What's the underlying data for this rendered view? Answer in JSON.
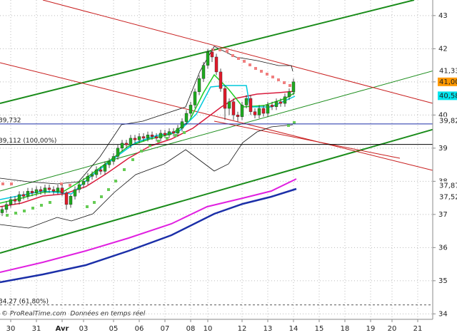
{
  "chart_data": {
    "type": "candlestick",
    "categories": [
      null,
      null,
      "30",
      null,
      null,
      null,
      null,
      null,
      "31",
      null,
      null,
      null,
      null,
      null,
      "Avr",
      null,
      null,
      null,
      null,
      "03",
      null,
      null,
      null,
      null,
      null,
      null,
      "05",
      null,
      null,
      null,
      null,
      null,
      "06",
      null,
      null,
      null,
      null,
      null,
      "07",
      null,
      null,
      null,
      null,
      null,
      "08",
      null,
      null,
      null,
      "10",
      null,
      null,
      null,
      null,
      null,
      null,
      null,
      "12",
      null,
      null,
      null,
      null,
      null,
      "13",
      null,
      null,
      null,
      null,
      null,
      "14",
      null,
      null,
      null,
      null,
      null,
      "15",
      null,
      null,
      null,
      null,
      null,
      "18",
      null,
      null,
      null,
      null,
      null,
      "19",
      null,
      null,
      null,
      null,
      "20",
      null,
      null,
      null,
      null,
      null,
      "21",
      null,
      null,
      null
    ],
    "open": [
      37.05,
      37.15,
      37.3,
      37.45,
      37.4,
      37.6,
      37.55,
      37.7,
      37.65,
      37.75,
      37.7,
      37.8,
      37.75,
      37.7,
      37.8,
      37.65,
      37.3,
      37.55,
      37.75,
      37.9,
      38.0,
      38.15,
      38.2,
      38.35,
      38.3,
      38.5,
      38.6,
      38.75,
      39.0,
      39.15,
      39.1,
      39.3,
      39.25,
      39.35,
      39.3,
      39.4,
      39.35,
      39.3,
      39.45,
      39.4,
      39.5,
      39.45,
      39.6,
      39.8,
      40.05,
      40.3,
      40.7,
      41.1,
      41.5,
      41.9,
      41.75,
      41.3,
      40.8,
      40.2,
      40.4,
      40.0,
      39.95,
      40.3,
      40.5,
      40.1,
      40.0,
      40.2,
      40.05,
      40.3,
      40.25,
      40.4,
      40.35,
      40.55,
      40.7,
      null,
      null,
      null,
      null,
      null,
      null,
      null,
      null,
      null,
      null,
      null,
      null,
      null,
      null,
      null,
      null,
      null,
      null,
      null,
      null,
      null,
      null,
      null,
      null,
      null,
      null,
      null,
      null,
      null,
      null,
      null,
      null
    ],
    "high": [
      37.25,
      37.4,
      37.55,
      37.55,
      37.7,
      37.7,
      37.8,
      37.8,
      37.85,
      37.85,
      37.9,
      37.9,
      37.85,
      37.9,
      37.9,
      37.7,
      37.6,
      37.85,
      38.0,
      38.1,
      38.25,
      38.3,
      38.45,
      38.45,
      38.6,
      38.7,
      38.85,
      39.1,
      39.25,
      39.25,
      39.4,
      39.4,
      39.45,
      39.45,
      39.5,
      39.5,
      39.45,
      39.55,
      39.55,
      39.6,
      39.6,
      39.7,
      39.9,
      40.15,
      40.4,
      40.8,
      41.2,
      41.6,
      42.0,
      42.0,
      41.85,
      41.4,
      40.9,
      40.5,
      40.5,
      40.1,
      40.4,
      40.6,
      40.6,
      40.2,
      40.3,
      40.3,
      40.4,
      40.4,
      40.5,
      40.5,
      40.65,
      40.8,
      41.1,
      null,
      null,
      null,
      null,
      null,
      null,
      null,
      null,
      null,
      null,
      null,
      null,
      null,
      null,
      null,
      null,
      null,
      null,
      null,
      null,
      null,
      null,
      null,
      null,
      null,
      null,
      null,
      null,
      null,
      null,
      null,
      null
    ],
    "low": [
      36.95,
      37.05,
      37.2,
      37.3,
      37.3,
      37.45,
      37.45,
      37.55,
      37.55,
      37.6,
      37.6,
      37.65,
      37.6,
      37.6,
      37.55,
      37.15,
      37.2,
      37.45,
      37.65,
      37.8,
      37.9,
      38.05,
      38.1,
      38.2,
      38.2,
      38.4,
      38.5,
      38.65,
      38.9,
      39.0,
      39.0,
      39.15,
      39.15,
      39.2,
      39.2,
      39.25,
      39.2,
      39.2,
      39.3,
      39.3,
      39.35,
      39.35,
      39.5,
      39.7,
      39.95,
      40.2,
      40.6,
      41.0,
      41.4,
      41.6,
      41.2,
      40.7,
      39.85,
      40.0,
      39.85,
      39.8,
      39.85,
      40.2,
      40.0,
      39.9,
      39.9,
      39.95,
      39.95,
      40.15,
      40.15,
      40.25,
      40.25,
      40.45,
      40.6,
      null,
      null,
      null,
      null,
      null,
      null,
      null,
      null,
      null,
      null,
      null,
      null,
      null,
      null,
      null,
      null,
      null,
      null,
      null,
      null,
      null,
      null,
      null,
      null,
      null,
      null,
      null,
      null,
      null,
      null,
      null,
      null
    ],
    "close": [
      37.15,
      37.3,
      37.45,
      37.4,
      37.6,
      37.55,
      37.7,
      37.65,
      37.75,
      37.7,
      37.8,
      37.75,
      37.7,
      37.8,
      37.65,
      37.3,
      37.55,
      37.75,
      37.9,
      38.0,
      38.15,
      38.2,
      38.35,
      38.3,
      38.5,
      38.6,
      38.75,
      39.0,
      39.15,
      39.1,
      39.3,
      39.25,
      39.35,
      39.3,
      39.4,
      39.35,
      39.3,
      39.45,
      39.4,
      39.5,
      39.45,
      39.6,
      39.8,
      40.05,
      40.3,
      40.7,
      41.1,
      41.5,
      41.9,
      41.75,
      41.3,
      40.8,
      40.2,
      40.4,
      40.0,
      39.95,
      40.3,
      40.5,
      40.1,
      40.0,
      40.2,
      40.05,
      40.3,
      40.25,
      40.4,
      40.35,
      40.55,
      40.7,
      41.0,
      null,
      null,
      null,
      null,
      null,
      null,
      null,
      null,
      null,
      null,
      null,
      null,
      null,
      null,
      null,
      null,
      null,
      null,
      null,
      null,
      null,
      null,
      null,
      null,
      null,
      null,
      null,
      null,
      null,
      null,
      null,
      null
    ],
    "up_color": "#1faa1f",
    "down_color": "#e01b2b",
    "ylim": [
      33.9,
      43.47
    ],
    "yticks": [
      34,
      35,
      36,
      37,
      38,
      39,
      40,
      41,
      42,
      43
    ],
    "grid": true,
    "levels": [
      {
        "value": 39.732,
        "label": "39,732",
        "color": "#1b2fa8",
        "dash": false
      },
      {
        "value": 39.112,
        "label": "39,112 (100,00%)",
        "color": "#000000",
        "dash": false
      },
      {
        "value": 34.27,
        "label": "34,27 (61,80%)",
        "color": "#555555",
        "dash": true
      }
    ],
    "price_tags": {
      "values": [
        41.33,
        41.0,
        40.58,
        39.82,
        37.87,
        37.52
      ],
      "value_labels": [
        "41,33",
        "41,00",
        "40,58",
        "39,82",
        "37,87",
        "37,52"
      ],
      "colors": [
        "#ffffff",
        "#ff9900",
        "#00e5ee",
        "#ffffff",
        "#ffffff",
        "#ffffff"
      ],
      "text_colors": [
        "#000000",
        "#000000",
        "#000000",
        "#000000",
        "#000000",
        "#d000d0"
      ]
    },
    "source": "© ProRealTime.com  Données en temps réel"
  }
}
